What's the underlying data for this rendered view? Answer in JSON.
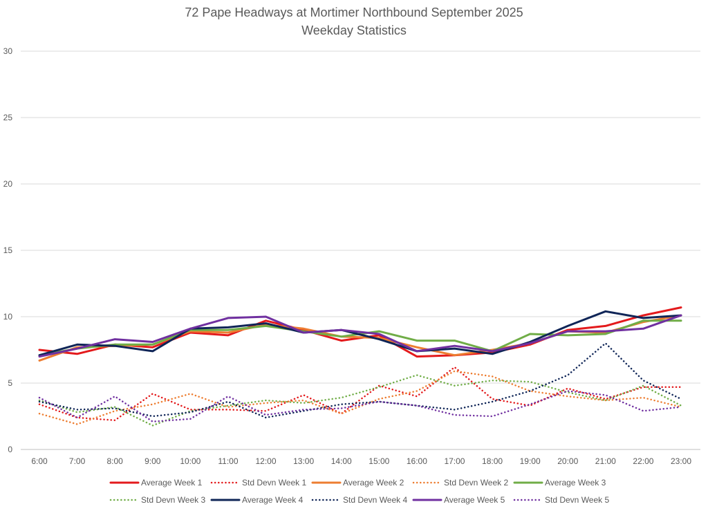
{
  "chart_data": {
    "type": "line",
    "title": "72 Pape Headways at Mortimer Northbound September 2025",
    "subtitle": "Weekday Statistics",
    "xlabel": "",
    "ylabel": "",
    "ylim": [
      0,
      30
    ],
    "yticks": [
      0,
      5,
      10,
      15,
      20,
      25,
      30
    ],
    "grid": true,
    "legend_position": "bottom",
    "categories": [
      "6:00",
      "7:00",
      "8:00",
      "9:00",
      "10:00",
      "11:00",
      "12:00",
      "13:00",
      "14:00",
      "15:00",
      "16:00",
      "17:00",
      "18:00",
      "19:00",
      "20:00",
      "21:00",
      "22:00",
      "23:00"
    ],
    "series": [
      {
        "name": "Average Week 1",
        "color": "#e31a1c",
        "dash": "solid",
        "values": [
          7.5,
          7.2,
          7.9,
          7.7,
          8.8,
          8.6,
          9.7,
          9.0,
          8.2,
          8.6,
          7.0,
          7.1,
          7.3,
          7.9,
          9.0,
          9.3,
          10.1,
          10.7
        ]
      },
      {
        "name": "Std Devn Week 1",
        "color": "#e31a1c",
        "dash": "dot",
        "values": [
          3.4,
          2.4,
          2.2,
          4.2,
          3.0,
          3.0,
          2.9,
          4.1,
          2.7,
          4.8,
          4.0,
          6.2,
          3.8,
          3.3,
          4.6,
          3.8,
          4.7,
          4.7
        ]
      },
      {
        "name": "Average Week 2",
        "color": "#ed7d31",
        "dash": "solid",
        "values": [
          6.7,
          7.7,
          7.8,
          7.9,
          8.9,
          8.8,
          9.4,
          9.1,
          8.5,
          8.4,
          7.7,
          7.1,
          7.5,
          8.0,
          8.9,
          8.8,
          9.6,
          10.1
        ]
      },
      {
        "name": "Std Devn Week 2",
        "color": "#ed7d31",
        "dash": "dot",
        "values": [
          2.7,
          1.9,
          2.9,
          3.4,
          4.2,
          3.2,
          3.5,
          3.7,
          2.7,
          3.8,
          4.4,
          5.9,
          5.5,
          4.4,
          4.0,
          3.7,
          3.9,
          3.2
        ]
      },
      {
        "name": "Average Week 3",
        "color": "#70ad47",
        "dash": "solid",
        "values": [
          7.1,
          7.6,
          7.9,
          7.9,
          9.0,
          9.0,
          9.3,
          8.9,
          8.5,
          8.9,
          8.2,
          8.2,
          7.4,
          8.7,
          8.6,
          8.7,
          9.7,
          9.7
        ]
      },
      {
        "name": "Std Devn Week 3",
        "color": "#70ad47",
        "dash": "dot",
        "values": [
          3.7,
          2.8,
          3.2,
          1.8,
          2.9,
          3.3,
          3.7,
          3.5,
          3.9,
          4.7,
          5.6,
          4.8,
          5.2,
          5.1,
          4.3,
          3.7,
          4.8,
          3.3
        ]
      },
      {
        "name": "Average Week 4",
        "color": "#0f2557",
        "dash": "solid",
        "values": [
          7.1,
          7.9,
          7.8,
          7.4,
          9.1,
          9.2,
          9.5,
          8.8,
          9.0,
          8.3,
          7.4,
          7.6,
          7.2,
          8.1,
          9.3,
          10.4,
          9.9,
          10.1
        ]
      },
      {
        "name": "Std Devn Week 4",
        "color": "#0f2557",
        "dash": "dot",
        "values": [
          3.6,
          3.0,
          3.1,
          2.5,
          2.8,
          3.6,
          2.4,
          2.9,
          3.4,
          3.6,
          3.3,
          3.0,
          3.6,
          4.4,
          5.6,
          8.0,
          5.2,
          3.8
        ]
      },
      {
        "name": "Average Week 5",
        "color": "#7030a0",
        "dash": "solid",
        "values": [
          7.0,
          7.6,
          8.3,
          8.1,
          9.1,
          9.9,
          10.0,
          8.8,
          9.0,
          8.7,
          7.4,
          7.8,
          7.4,
          8.0,
          8.9,
          8.9,
          9.1,
          10.1
        ]
      },
      {
        "name": "Std Devn Week 5",
        "color": "#7030a0",
        "dash": "dot",
        "values": [
          3.9,
          2.4,
          4.0,
          2.1,
          2.3,
          4.0,
          2.6,
          3.0,
          3.1,
          3.6,
          3.3,
          2.6,
          2.5,
          3.4,
          4.4,
          4.1,
          2.9,
          3.2
        ]
      }
    ]
  }
}
